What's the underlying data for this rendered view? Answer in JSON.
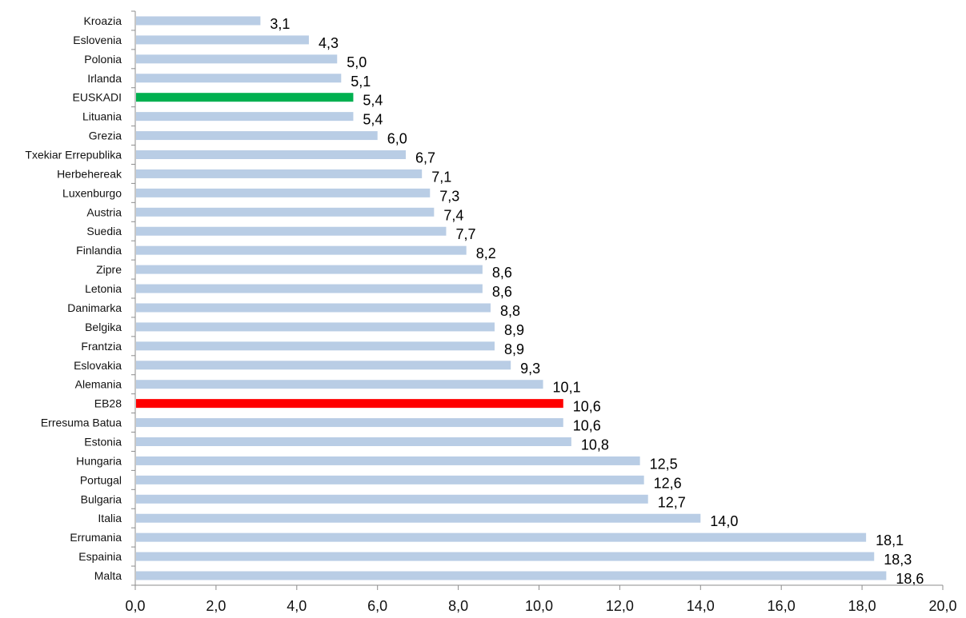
{
  "chart_data": {
    "type": "bar",
    "orientation": "horizontal",
    "categories": [
      "Kroazia",
      "Eslovenia",
      "Polonia",
      "Irlanda",
      "EUSKADI",
      "Lituania",
      "Grezia",
      "Txekiar Errepublika",
      "Herbehereak",
      "Luxenburgo",
      "Austria",
      "Suedia",
      "Finlandia",
      "Zipre",
      "Letonia",
      "Danimarka",
      "Belgika",
      "Frantzia",
      "Eslovakia",
      "Alemania",
      "EB28",
      "Erresuma Batua",
      "Estonia",
      "Hungaria",
      "Portugal",
      "Bulgaria",
      "Italia",
      "Errumania",
      "Espainia",
      "Malta"
    ],
    "values": [
      3.1,
      4.3,
      5.0,
      5.1,
      5.4,
      5.4,
      6.0,
      6.7,
      7.1,
      7.3,
      7.4,
      7.7,
      8.2,
      8.6,
      8.6,
      8.8,
      8.9,
      8.9,
      9.3,
      10.1,
      10.6,
      10.6,
      10.8,
      12.5,
      12.6,
      12.7,
      14.0,
      18.1,
      18.3,
      18.6
    ],
    "value_labels": [
      "3,1",
      "4,3",
      "5,0",
      "5,1",
      "5,4",
      "5,4",
      "6,0",
      "6,7",
      "7,1",
      "7,3",
      "7,4",
      "7,7",
      "8,2",
      "8,6",
      "8,6",
      "8,8",
      "8,9",
      "8,9",
      "9,3",
      "10,1",
      "10,6",
      "10,6",
      "10,8",
      "12,5",
      "12,6",
      "12,7",
      "14,0",
      "18,1",
      "18,3",
      "18,6"
    ],
    "xlim": [
      0,
      20
    ],
    "x_ticks": [
      0,
      2,
      4,
      6,
      8,
      10,
      12,
      14,
      16,
      18,
      20
    ],
    "x_tick_labels": [
      "0,0",
      "2,0",
      "4,0",
      "6,0",
      "8,0",
      "10,0",
      "12,0",
      "14,0",
      "16,0",
      "18,0",
      "20,0"
    ],
    "title": "",
    "xlabel": "",
    "ylabel": "",
    "grid": false,
    "legend": "none",
    "colors": {
      "default": "#b9cde5",
      "highlights": {
        "EUSKADI": "#00b050",
        "EB28": "#ff0000"
      },
      "axis": "#8c8c8c"
    }
  }
}
